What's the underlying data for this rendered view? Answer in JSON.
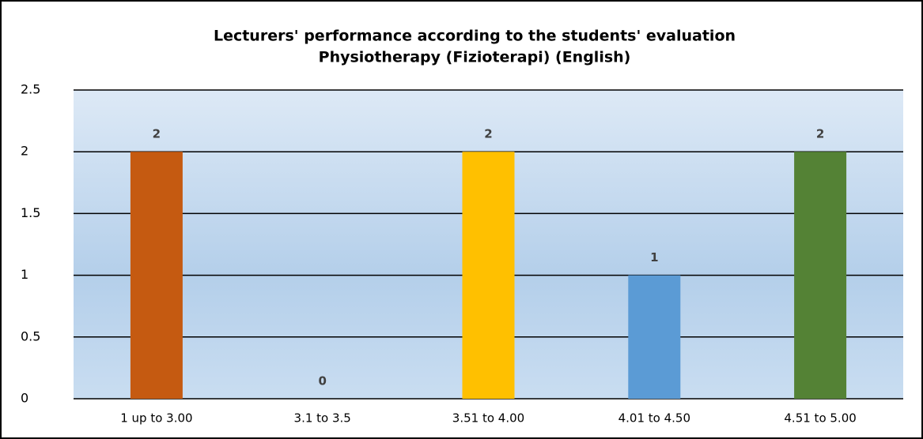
{
  "chart_data": {
    "type": "bar",
    "title": [
      "Lecturers' performance according to the students' evaluation",
      "Physiotherapy (Fizioterapi) (English)"
    ],
    "categories": [
      "1 up to 3.00",
      "3.1 to 3.5",
      "3.51 to 4.00",
      "4.01 to 4.50",
      "4.51 to 5.00"
    ],
    "values": [
      2,
      0,
      2,
      1,
      2
    ],
    "colors": [
      "#c55a11",
      "#4472c4",
      "#ffc000",
      "#5b9bd5",
      "#548235"
    ],
    "ylim": [
      0,
      2.5
    ],
    "yticks": [
      0,
      0.5,
      1,
      1.5,
      2,
      2.5
    ],
    "grid": true
  }
}
